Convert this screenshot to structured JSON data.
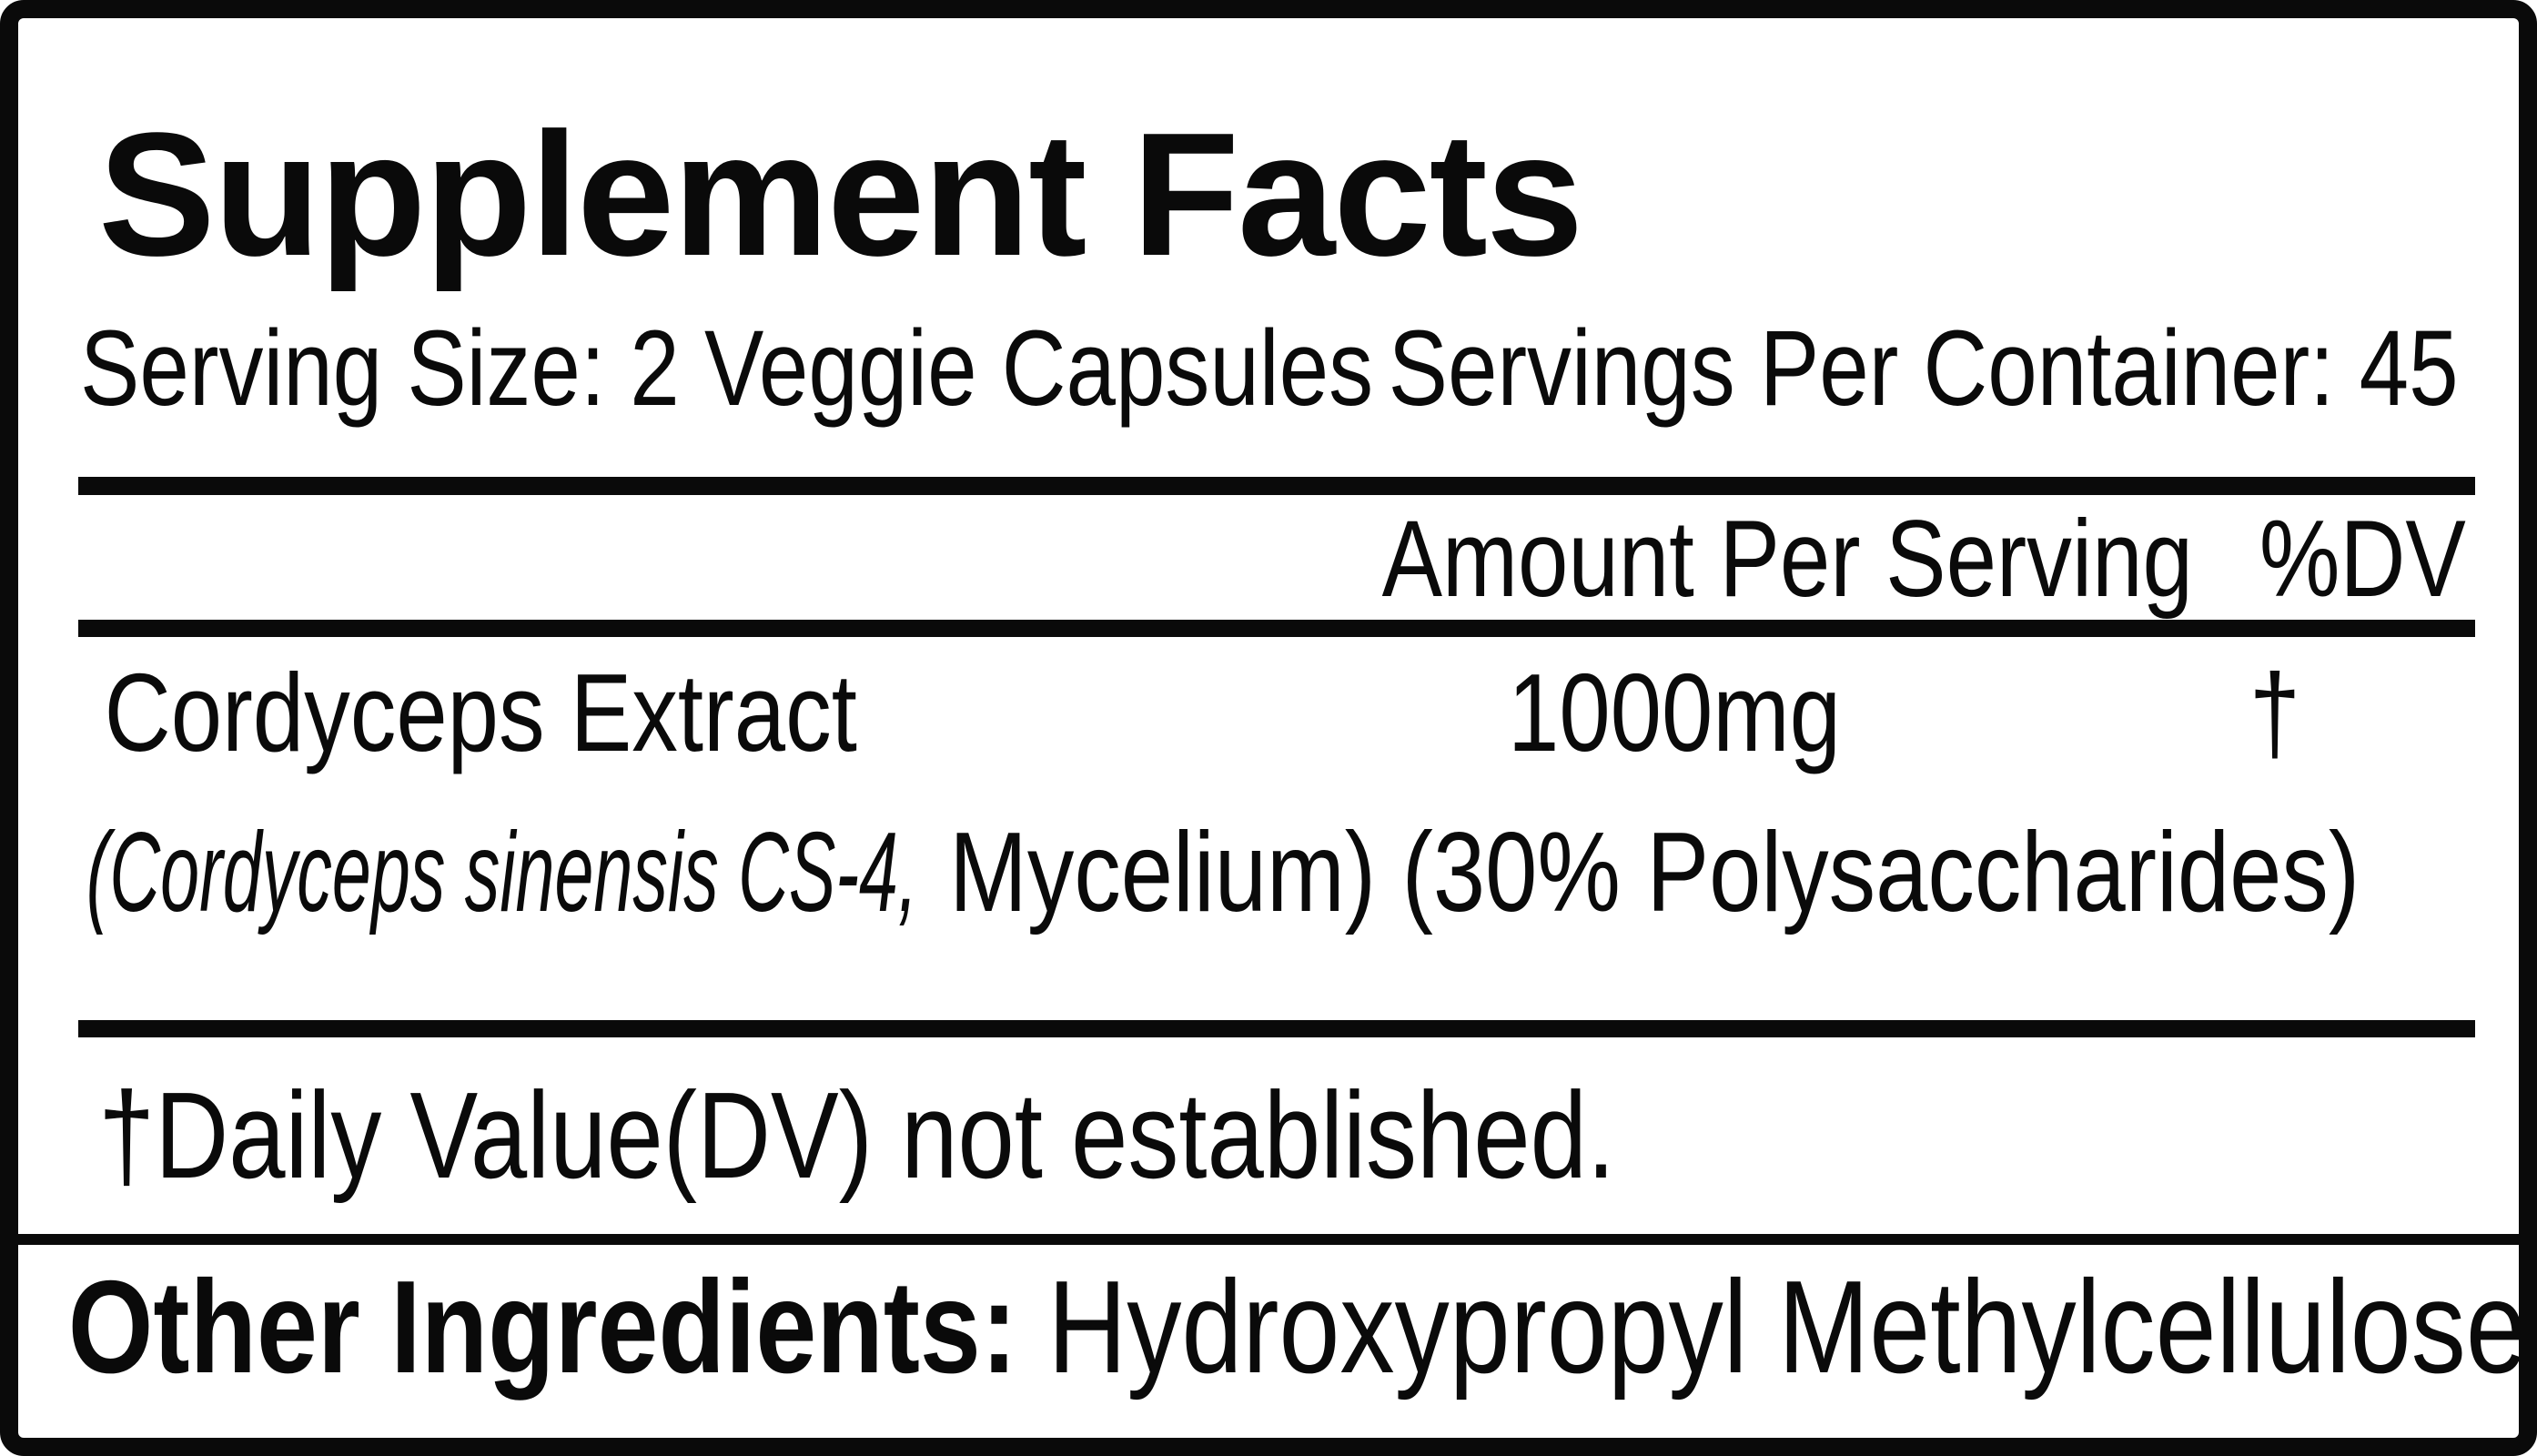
{
  "label": {
    "title": "Supplement Facts",
    "serving_size": "Serving Size: 2 Veggie Capsules",
    "servings_per_container": "Servings Per Container: 45",
    "header": {
      "amount_per_serving": "Amount Per Serving",
      "dv": "%DV"
    },
    "ingredients": [
      {
        "name": "Cordyceps Extract",
        "detail_latin": "(Cordyceps sinensis CS-4,",
        "detail_rest": "Mycelium) (30% Polysaccharides)",
        "amount": "1000mg",
        "dv": "†"
      }
    ],
    "footnote": "†Daily Value(DV) not established.",
    "other_ingredients": {
      "label": "Other Ingredients:",
      "value": "Hydroxypropyl Methylcellulose"
    },
    "colors": {
      "ink": "#0a0a0a",
      "background": "#ffffff"
    }
  }
}
